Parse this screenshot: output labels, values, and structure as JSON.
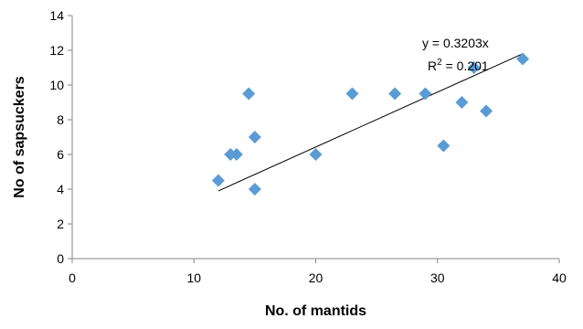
{
  "chart_data": {
    "type": "scatter",
    "title": "",
    "xlabel": "No. of mantids",
    "ylabel": "No of sapsuckers",
    "xlim": [
      0,
      40
    ],
    "ylim": [
      0,
      14
    ],
    "xticks": [
      0,
      10,
      20,
      30,
      40
    ],
    "yticks": [
      0,
      2,
      4,
      6,
      8,
      10,
      12,
      14
    ],
    "grid": false,
    "legend": "none",
    "series": [
      {
        "marker": "diamond",
        "color": "#5B9BD5",
        "points": [
          {
            "x": 12,
            "y": 4.5
          },
          {
            "x": 13,
            "y": 6
          },
          {
            "x": 13.5,
            "y": 6
          },
          {
            "x": 14.5,
            "y": 9.5
          },
          {
            "x": 15,
            "y": 7
          },
          {
            "x": 15,
            "y": 4
          },
          {
            "x": 20,
            "y": 6
          },
          {
            "x": 23,
            "y": 9.5
          },
          {
            "x": 26.5,
            "y": 9.5
          },
          {
            "x": 29,
            "y": 9.5
          },
          {
            "x": 30.5,
            "y": 6.5
          },
          {
            "x": 32,
            "y": 9
          },
          {
            "x": 33,
            "y": 11
          },
          {
            "x": 34,
            "y": 8.5
          },
          {
            "x": 37,
            "y": 11.5
          }
        ]
      }
    ],
    "trendline": {
      "x_range": [
        12,
        37
      ],
      "y_range": [
        3.9,
        11.8
      ],
      "color": "#000000"
    },
    "annotations": {
      "equation": "y = 0.3203x",
      "r_squared_prefix": "R",
      "r_squared_exponent": "2",
      "r_squared_value": " = 0.201"
    }
  }
}
